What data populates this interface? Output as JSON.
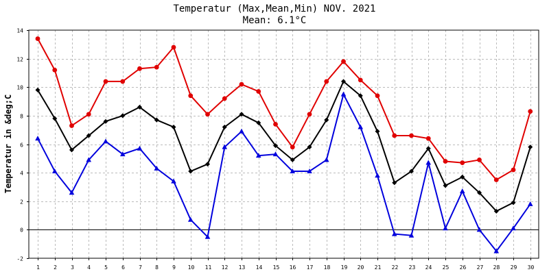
{
  "chart_data": {
    "type": "line",
    "title": "Temperatur (Max,Mean,Min) NOV. 2021",
    "subtitle": "Mean: 6.1°C",
    "ylabel": "Temperatur in &deg;C",
    "xlabel": "",
    "x": [
      1,
      2,
      3,
      4,
      5,
      6,
      7,
      8,
      9,
      10,
      11,
      12,
      13,
      14,
      15,
      16,
      17,
      18,
      19,
      20,
      21,
      22,
      23,
      24,
      25,
      26,
      27,
      28,
      29,
      30
    ],
    "ylim": [
      -2,
      14
    ],
    "yticks": [
      -2,
      0,
      2,
      4,
      6,
      8,
      10,
      12,
      14
    ],
    "grid": true,
    "legend": "none",
    "series": [
      {
        "color": "#e00000",
        "marker": "circle",
        "values": [
          13.4,
          11.2,
          7.3,
          8.1,
          10.4,
          10.4,
          11.3,
          11.4,
          12.8,
          9.4,
          8.1,
          9.2,
          10.2,
          9.7,
          7.4,
          5.8,
          8.1,
          10.4,
          11.8,
          10.5,
          9.4,
          6.6,
          6.6,
          6.4,
          4.8,
          4.7,
          4.9,
          3.5,
          4.2,
          8.3
        ]
      },
      {
        "color": "#000000",
        "marker": "diamond",
        "values": [
          9.8,
          7.8,
          5.6,
          6.6,
          7.6,
          8.0,
          8.6,
          7.7,
          7.2,
          4.1,
          4.6,
          7.2,
          8.1,
          7.5,
          5.9,
          4.9,
          5.8,
          7.7,
          10.4,
          9.4,
          6.9,
          3.3,
          4.1,
          5.7,
          3.1,
          3.7,
          2.6,
          1.3,
          1.9,
          5.8
        ]
      },
      {
        "color": "#0000dd",
        "marker": "triangle",
        "values": [
          6.4,
          4.1,
          2.6,
          4.9,
          6.2,
          5.3,
          5.7,
          4.3,
          3.4,
          0.7,
          -0.5,
          5.8,
          6.9,
          5.2,
          5.3,
          4.1,
          4.1,
          4.9,
          9.5,
          7.2,
          3.8,
          -0.3,
          -0.4,
          4.7,
          0.1,
          2.7,
          0.0,
          -1.5,
          0.1,
          1.8
        ]
      }
    ]
  }
}
